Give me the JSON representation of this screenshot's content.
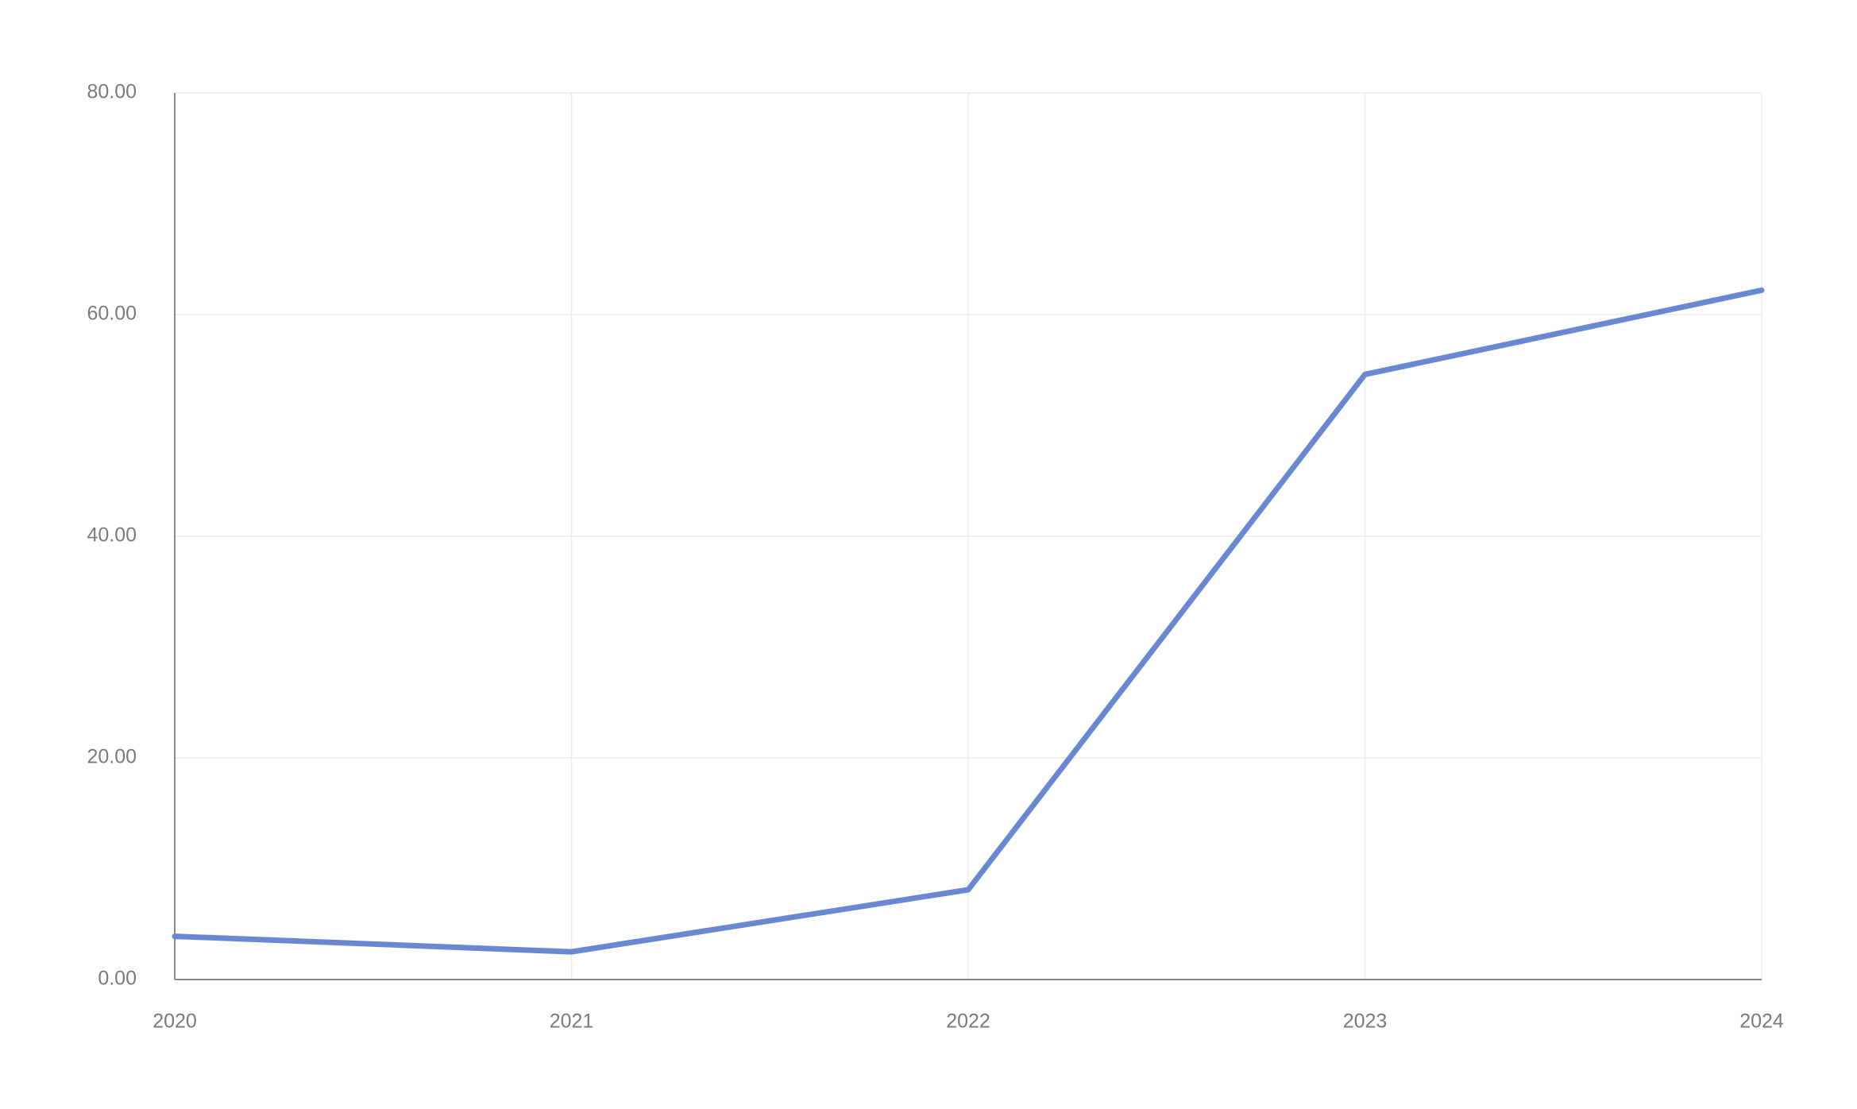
{
  "chart_data": {
    "type": "line",
    "categories": [
      "2020",
      "2021",
      "2022",
      "2023",
      "2024"
    ],
    "series": [
      {
        "color": "#6a87d2",
        "values": [
          3.9,
          2.5,
          8.1,
          54.6,
          62.2
        ]
      }
    ],
    "ylim": [
      0,
      80
    ],
    "yticks": [
      {
        "value": 0,
        "label": "0.00"
      },
      {
        "value": 20,
        "label": "20.00"
      },
      {
        "value": 40,
        "label": "40.00"
      },
      {
        "value": 60,
        "label": "60.00"
      },
      {
        "value": 80,
        "label": "80.00"
      }
    ],
    "grid": true
  }
}
